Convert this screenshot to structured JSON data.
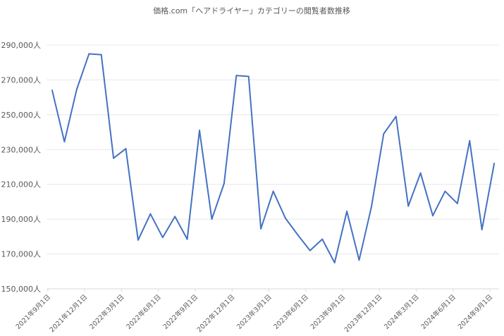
{
  "chart_data": {
    "type": "line",
    "title": "価格.com「ヘアドライヤー」カテゴリーの閲覧者数推移",
    "xlabel": "",
    "ylabel": "",
    "ylim": [
      150000,
      290000
    ],
    "y_ticks": [
      "150,000人",
      "170,000人",
      "190,000人",
      "210,000人",
      "230,000人",
      "250,000人",
      "270,000人",
      "290,000人"
    ],
    "x_tick_labels": [
      "2021年9月1日",
      "2021年12月1日",
      "2022年3月1日",
      "2022年6月1日",
      "2022年9月1日",
      "2022年12月1日",
      "2023年3月1日",
      "2023年6月1日",
      "2023年9月1日",
      "2023年12月1日",
      "2024年3月1日",
      "2024年6月1日",
      "2024年9月1日"
    ],
    "grid": true,
    "series": [
      {
        "name": "閲覧者数",
        "color": "#4472c4",
        "x": [
          "2021-09",
          "2021-10",
          "2021-11",
          "2021-12",
          "2022-01",
          "2022-02",
          "2022-03",
          "2022-04",
          "2022-05",
          "2022-06",
          "2022-07",
          "2022-08",
          "2022-09",
          "2022-10",
          "2022-11",
          "2022-12",
          "2023-01",
          "2023-02",
          "2023-03",
          "2023-04",
          "2023-05",
          "2023-06",
          "2023-07",
          "2023-08",
          "2023-09",
          "2023-10",
          "2023-11",
          "2023-12",
          "2024-01",
          "2024-02",
          "2024-03",
          "2024-04",
          "2024-05",
          "2024-06",
          "2024-07",
          "2024-08",
          "2024-09"
        ],
        "values": [
          264000,
          234500,
          264500,
          285000,
          284500,
          225000,
          230500,
          178000,
          193000,
          179500,
          191500,
          178500,
          241000,
          190000,
          210500,
          272500,
          272000,
          184500,
          206000,
          190500,
          181000,
          172000,
          178500,
          165000,
          194500,
          166500,
          197000,
          239000,
          249000,
          197500,
          216500,
          192000,
          206000,
          199000,
          235000,
          184000,
          222000
        ]
      }
    ]
  }
}
